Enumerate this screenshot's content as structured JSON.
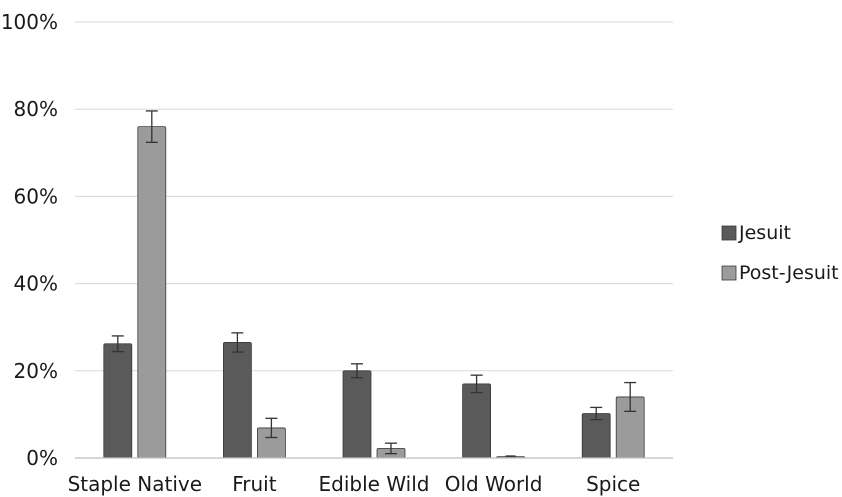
{
  "chart_data": {
    "type": "bar",
    "title": "",
    "xlabel": "",
    "ylabel": "",
    "ylim": [
      0,
      100
    ],
    "yticks": [
      0,
      20,
      40,
      60,
      80,
      100
    ],
    "ytick_labels": [
      "0%",
      "20%",
      "40%",
      "60%",
      "80%",
      "100%"
    ],
    "grid": true,
    "legend_position": "right",
    "categories": [
      "Staple Native",
      "Fruit",
      "Edible Wild",
      "Old World",
      "Spice"
    ],
    "series": [
      {
        "name": "Jesuit",
        "color": "#5a5a5a",
        "values": [
          26.2,
          26.5,
          20.0,
          17.0,
          10.2
        ],
        "error": [
          1.8,
          2.2,
          1.6,
          2.0,
          1.4
        ]
      },
      {
        "name": "Post-Jesuit",
        "color": "#9b9b9b",
        "values": [
          76.0,
          6.9,
          2.2,
          0.3,
          14.0
        ],
        "error": [
          3.6,
          2.2,
          1.2,
          0.0,
          3.3
        ]
      }
    ]
  }
}
